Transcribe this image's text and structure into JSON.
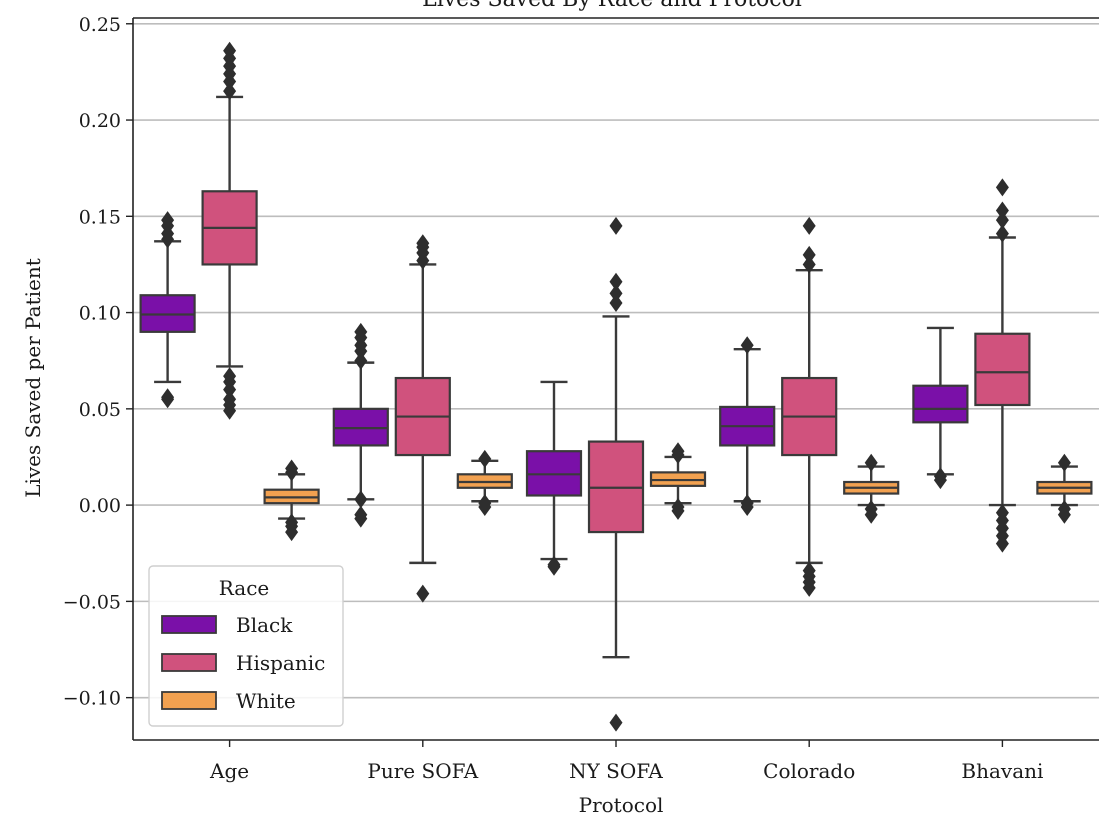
{
  "chart_data": {
    "type": "box",
    "title": "Lives Saved By Race and Protocol",
    "xlabel": "Protocol",
    "ylabel": "Lives Saved per Patient",
    "categories": [
      "Age",
      "Pure SOFA",
      "NY SOFA",
      "Colorado",
      "Bhavani"
    ],
    "ylim": [
      -0.122,
      0.253
    ],
    "yticks": [
      -0.1,
      -0.05,
      0.0,
      0.05,
      0.1,
      0.15,
      0.2,
      0.25
    ],
    "ytick_labels": [
      "−0.10",
      "−0.05",
      "0.00",
      "0.05",
      "0.10",
      "0.15",
      "0.20",
      "0.25"
    ],
    "grid": "horizontal",
    "legend": {
      "title": "Race",
      "position": "lower-left"
    },
    "series": [
      {
        "name": "Black",
        "color": "#7a10a8",
        "boxes": [
          {
            "whislo": 0.064,
            "q1": 0.09,
            "med": 0.099,
            "q3": 0.109,
            "whishi": 0.137,
            "fliers": [
              0.055,
              0.056,
              0.138,
              0.141,
              0.145,
              0.148
            ]
          },
          {
            "whislo": 0.003,
            "q1": 0.031,
            "med": 0.04,
            "q3": 0.05,
            "whishi": 0.074,
            "fliers": [
              -0.007,
              -0.005,
              0.003,
              0.075,
              0.08,
              0.083,
              0.087,
              0.09
            ]
          },
          {
            "whislo": -0.028,
            "q1": 0.005,
            "med": 0.016,
            "q3": 0.028,
            "whishi": 0.064,
            "fliers": [
              -0.032,
              -0.031
            ]
          },
          {
            "whislo": 0.002,
            "q1": 0.031,
            "med": 0.041,
            "q3": 0.051,
            "whishi": 0.081,
            "fliers": [
              -0.001,
              0.001,
              0.083
            ]
          },
          {
            "whislo": 0.016,
            "q1": 0.043,
            "med": 0.05,
            "q3": 0.062,
            "whishi": 0.092,
            "fliers": [
              0.013,
              0.015
            ]
          }
        ]
      },
      {
        "name": "Hispanic",
        "color": "#d0527d",
        "boxes": [
          {
            "whislo": 0.072,
            "q1": 0.125,
            "med": 0.144,
            "q3": 0.163,
            "whishi": 0.212,
            "fliers": [
              0.049,
              0.052,
              0.055,
              0.06,
              0.064,
              0.067,
              0.215,
              0.22,
              0.224,
              0.228,
              0.232,
              0.236
            ]
          },
          {
            "whislo": -0.03,
            "q1": 0.026,
            "med": 0.046,
            "q3": 0.066,
            "whishi": 0.125,
            "fliers": [
              -0.046,
              0.127,
              0.131,
              0.134,
              0.136
            ]
          },
          {
            "whislo": -0.079,
            "q1": -0.014,
            "med": 0.009,
            "q3": 0.033,
            "whishi": 0.098,
            "fliers": [
              -0.113,
              0.105,
              0.11,
              0.116,
              0.145
            ]
          },
          {
            "whislo": -0.03,
            "q1": 0.026,
            "med": 0.046,
            "q3": 0.066,
            "whishi": 0.122,
            "fliers": [
              -0.043,
              -0.04,
              -0.037,
              -0.034,
              0.125,
              0.13,
              0.145
            ]
          },
          {
            "whislo": 0.0,
            "q1": 0.052,
            "med": 0.069,
            "q3": 0.089,
            "whishi": 0.139,
            "fliers": [
              -0.02,
              -0.016,
              -0.012,
              -0.008,
              -0.004,
              0.141,
              0.148,
              0.153,
              0.165
            ]
          }
        ]
      },
      {
        "name": "White",
        "color": "#f2a150",
        "boxes": [
          {
            "whislo": -0.007,
            "q1": 0.001,
            "med": 0.004,
            "q3": 0.008,
            "whishi": 0.016,
            "fliers": [
              -0.014,
              -0.011,
              -0.009,
              0.017,
              0.019
            ]
          },
          {
            "whislo": 0.002,
            "q1": 0.009,
            "med": 0.012,
            "q3": 0.016,
            "whishi": 0.023,
            "fliers": [
              -0.001,
              0.001,
              0.024
            ]
          },
          {
            "whislo": 0.001,
            "q1": 0.01,
            "med": 0.013,
            "q3": 0.017,
            "whishi": 0.025,
            "fliers": [
              -0.003,
              -0.001,
              0.026,
              0.028
            ]
          },
          {
            "whislo": 0.0,
            "q1": 0.006,
            "med": 0.009,
            "q3": 0.012,
            "whishi": 0.02,
            "fliers": [
              -0.005,
              -0.002,
              0.022
            ]
          },
          {
            "whislo": 0.0,
            "q1": 0.006,
            "med": 0.009,
            "q3": 0.012,
            "whishi": 0.02,
            "fliers": [
              -0.005,
              -0.002,
              0.022
            ]
          }
        ]
      }
    ]
  }
}
